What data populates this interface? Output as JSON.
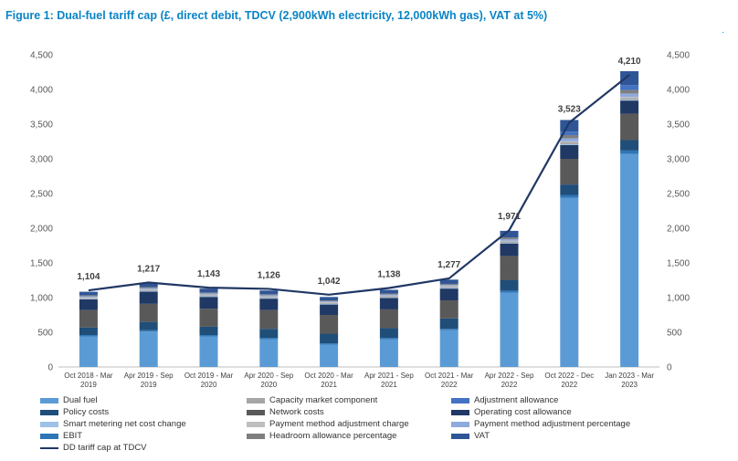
{
  "title": "Figure 1: Dual-fuel tariff cap (£, direct debit, TDCV (2,900kWh electricity, 12,000kWh gas), VAT at 5%)",
  "chart_data": {
    "type": "bar",
    "stacked": true,
    "categories": [
      [
        "Oct 2018 - Mar",
        "2019"
      ],
      [
        "Apr 2019 - Sep",
        "2019"
      ],
      [
        "Oct 2019 - Mar",
        "2020"
      ],
      [
        "Apr 2020 - Sep",
        "2020"
      ],
      [
        "Oct 2020 - Mar",
        "2021"
      ],
      [
        "Apr 2021 - Sep",
        "2021"
      ],
      [
        "Oct 2021 - Mar",
        "2022"
      ],
      [
        "Apr 2022 - Sep",
        "2022"
      ],
      [
        "Oct 2022 - Dec",
        "2022"
      ],
      [
        "Jan 2023 - Mar",
        "2023"
      ]
    ],
    "ylim": [
      0,
      4500
    ],
    "yticks": [
      0,
      500,
      1000,
      1500,
      2000,
      2500,
      3000,
      3500,
      4000,
      4500
    ],
    "ytick_labels": [
      "0",
      "500",
      "1,000",
      "1,500",
      "2,000",
      "2,500",
      "3,000",
      "3,500",
      "4,000",
      "4,500"
    ],
    "grid": false,
    "legend_position": "bottom",
    "series": [
      {
        "name": "Dual fuel",
        "color": "#5b9bd5",
        "values": [
          440,
          510,
          440,
          400,
          320,
          400,
          530,
          1070,
          2440,
          3070
        ]
      },
      {
        "name": "EBIT",
        "color": "#2e75b6",
        "values": [
          20,
          20,
          20,
          20,
          20,
          20,
          20,
          30,
          40,
          50
        ]
      },
      {
        "name": "Policy costs",
        "color": "#1f4e79",
        "values": [
          110,
          120,
          120,
          130,
          140,
          140,
          150,
          150,
          150,
          150
        ]
      },
      {
        "name": "Network costs",
        "color": "#595959",
        "values": [
          250,
          260,
          260,
          270,
          270,
          270,
          260,
          350,
          370,
          380
        ]
      },
      {
        "name": "Operating cost allowance",
        "color": "#203864",
        "values": [
          155,
          175,
          170,
          165,
          150,
          165,
          170,
          180,
          200,
          190
        ]
      },
      {
        "name": "Smart metering net cost change",
        "color": "#9dc3e6",
        "values": [
          8,
          10,
          10,
          10,
          10,
          10,
          10,
          10,
          12,
          12
        ]
      },
      {
        "name": "Capacity market component",
        "color": "#a6a6a6",
        "values": [
          12,
          15,
          15,
          15,
          15,
          15,
          16,
          18,
          25,
          25
        ]
      },
      {
        "name": "Payment method adjustment charge",
        "color": "#bfbfbf",
        "values": [
          10,
          10,
          10,
          10,
          10,
          10,
          10,
          10,
          15,
          15
        ]
      },
      {
        "name": "Payment method adjustment percentage",
        "color": "#8faadc",
        "values": [
          15,
          15,
          15,
          14,
          12,
          14,
          16,
          25,
          45,
          50
        ]
      },
      {
        "name": "Headroom allowance percentage",
        "color": "#7f7f7f",
        "values": [
          14,
          15,
          14,
          14,
          12,
          14,
          16,
          25,
          45,
          50
        ]
      },
      {
        "name": "Adjustment allowance",
        "color": "#4472c4",
        "values": [
          0,
          0,
          0,
          0,
          0,
          0,
          0,
          0,
          50,
          70
        ]
      },
      {
        "name": "VAT",
        "color": "#2f5597",
        "values": [
          50,
          57,
          55,
          54,
          50,
          54,
          61,
          94,
          168,
          201
        ]
      }
    ],
    "line": {
      "name": "DD tariff cap at TDCV",
      "color": "#203864",
      "values": [
        1104,
        1217,
        1143,
        1126,
        1042,
        1138,
        1277,
        1971,
        3523,
        4210
      ],
      "labels": [
        "1,104",
        "1,217",
        "1,143",
        "1,126",
        "1,042",
        "1,138",
        "1,277",
        "1,971",
        "3,523",
        "4,210"
      ]
    }
  },
  "legend": [
    [
      {
        "label": "Dual fuel",
        "color": "#5b9bd5",
        "type": "bar"
      },
      {
        "label": "Capacity market component",
        "color": "#a6a6a6",
        "type": "bar"
      },
      {
        "label": "Adjustment allowance",
        "color": "#4472c4",
        "type": "bar"
      }
    ],
    [
      {
        "label": "Policy costs",
        "color": "#1f4e79",
        "type": "bar"
      },
      {
        "label": "Network costs",
        "color": "#595959",
        "type": "bar"
      },
      {
        "label": "Operating cost allowance",
        "color": "#203864",
        "type": "bar"
      }
    ],
    [
      {
        "label": "Smart metering net cost change",
        "color": "#9dc3e6",
        "type": "bar"
      },
      {
        "label": "Payment method adjustment charge",
        "color": "#bfbfbf",
        "type": "bar"
      },
      {
        "label": "Payment method adjustment percentage",
        "color": "#8faadc",
        "type": "bar"
      }
    ],
    [
      {
        "label": "EBIT",
        "color": "#2e75b6",
        "type": "bar"
      },
      {
        "label": "Headroom allowance percentage",
        "color": "#7f7f7f",
        "type": "bar"
      },
      {
        "label": "VAT",
        "color": "#2f5597",
        "type": "bar"
      }
    ],
    [
      {
        "label": "DD tariff cap at TDCV",
        "color": "#203864",
        "type": "line"
      }
    ]
  ]
}
